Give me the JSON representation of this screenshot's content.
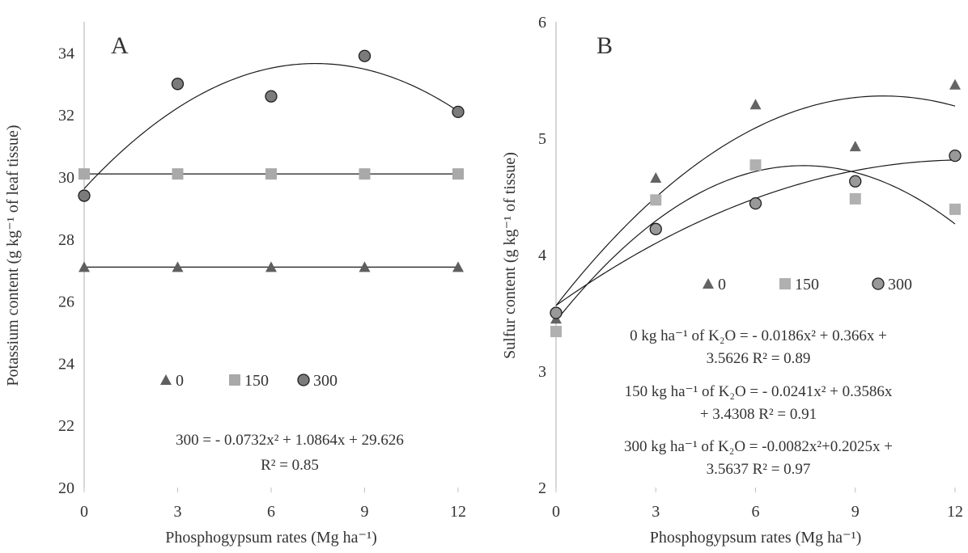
{
  "chart_data": [
    {
      "type": "scatter",
      "panel_label": "A",
      "xlabel": "Phosphogypsum rates (Mg ha⁻¹)",
      "ylabel": "Potassium content (g kg⁻¹ of leaf tissue)",
      "xlim": [
        0,
        12
      ],
      "ylim": [
        20,
        35
      ],
      "x_ticks": [
        "0",
        "3",
        "6",
        "9",
        "12"
      ],
      "y_ticks": [
        "20",
        "22",
        "24",
        "26",
        "28",
        "30",
        "32",
        "34"
      ],
      "grid": false,
      "legend_position": "center",
      "x": [
        0,
        3,
        6,
        9,
        12
      ],
      "series": [
        {
          "name": "0",
          "marker": "triangle",
          "color": "#5f5f5f",
          "values": [
            27.1,
            27.1,
            27.1,
            27.1,
            27.1
          ],
          "fit": {
            "type": "constant",
            "value": 27.1
          }
        },
        {
          "name": "150",
          "marker": "square",
          "color": "#a9a9a9",
          "values": [
            30.1,
            30.1,
            30.1,
            30.1,
            30.1
          ],
          "fit": {
            "type": "constant",
            "value": 30.1
          }
        },
        {
          "name": "300",
          "marker": "circle",
          "color": "#7b7b7b",
          "values": [
            29.4,
            33.0,
            32.6,
            33.9,
            32.1
          ],
          "fit": {
            "type": "quadratic",
            "a": -0.0732,
            "b": 1.0864,
            "c": 29.626
          }
        }
      ],
      "equations": [
        "300 = - 0.0732x² + 1.0864x + 29.626",
        "R² = 0.85"
      ]
    },
    {
      "type": "scatter",
      "panel_label": "B",
      "xlabel": "Phosphogypsum rates (Mg ha⁻¹)",
      "ylabel": "Sulfur content (g kg⁻¹ of tissue)",
      "xlim": [
        0,
        12
      ],
      "ylim": [
        2,
        6
      ],
      "x_ticks": [
        "0",
        "3",
        "6",
        "9",
        "12"
      ],
      "y_ticks": [
        "2",
        "3",
        "4",
        "5",
        "6"
      ],
      "grid": false,
      "legend_position": "center",
      "x": [
        0,
        3,
        6,
        9,
        12
      ],
      "series": [
        {
          "name": "0",
          "marker": "triangle",
          "color": "#646464",
          "values": [
            3.45,
            4.66,
            5.29,
            4.93,
            5.46
          ],
          "fit": {
            "type": "quadratic",
            "a": -0.0186,
            "b": 0.366,
            "c": 3.5626
          }
        },
        {
          "name": "150",
          "marker": "square",
          "color": "#b0b0b0",
          "values": [
            3.34,
            4.47,
            4.77,
            4.48,
            4.39
          ],
          "fit": {
            "type": "quadratic",
            "a": -0.0241,
            "b": 0.3586,
            "c": 3.4308
          }
        },
        {
          "name": "300",
          "marker": "circle",
          "color": "#999999",
          "values": [
            3.5,
            4.22,
            4.44,
            4.63,
            4.85
          ],
          "fit": {
            "type": "quadratic",
            "a": -0.0082,
            "b": 0.2025,
            "c": 3.5637
          }
        }
      ],
      "equations": [
        "0 kg ha⁻¹ of K₂O  = - 0.0186x² + 0.366x +",
        "3.5626  R² = 0.89",
        "150 kg ha⁻¹ of K₂O  = - 0.0241x² + 0.3586x",
        "+ 3.4308  R² = 0.91",
        "300 kg ha⁻¹ of K₂O  = -0.0082x²+0.2025x +",
        "3.5637  R² = 0.97"
      ]
    }
  ]
}
